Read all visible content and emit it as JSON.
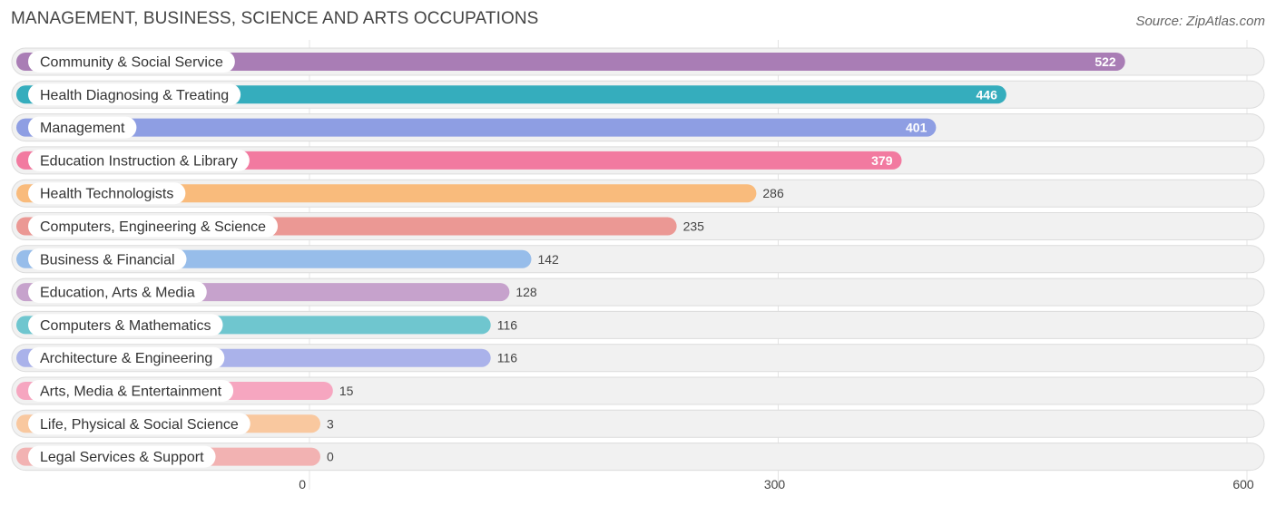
{
  "header": {
    "title": "MANAGEMENT, BUSINESS, SCIENCE AND ARTS OCCUPATIONS",
    "source": "Source: ZipAtlas.com"
  },
  "chart_data": {
    "type": "bar",
    "orientation": "horizontal",
    "title": "MANAGEMENT, BUSINESS, SCIENCE AND ARTS OCCUPATIONS",
    "categories": [
      "Community & Social Service",
      "Health Diagnosing & Treating",
      "Management",
      "Education Instruction & Library",
      "Health Technologists",
      "Computers, Engineering & Science",
      "Business & Financial",
      "Education, Arts & Media",
      "Computers & Mathematics",
      "Architecture & Engineering",
      "Arts, Media & Entertainment",
      "Life, Physical & Social Science",
      "Legal Services & Support"
    ],
    "values": [
      522,
      446,
      401,
      379,
      286,
      235,
      142,
      128,
      116,
      116,
      15,
      3,
      0
    ],
    "colors": [
      "#a97db5",
      "#35adbd",
      "#8e9ee3",
      "#f27aa0",
      "#f9bb7c",
      "#eb9894",
      "#97bdea",
      "#c6a2cc",
      "#6fc6cf",
      "#aab2ea",
      "#f6a6c0",
      "#f9c89f",
      "#f2b2b2"
    ],
    "xlim": [
      0,
      600
    ],
    "xticks": [
      0,
      300,
      600
    ],
    "grid": true,
    "legend": "none"
  }
}
